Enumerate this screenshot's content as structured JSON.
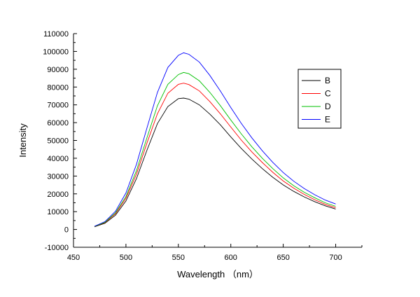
{
  "chart_data": {
    "type": "line",
    "title": "",
    "xlabel": "Wavelength （nm）",
    "ylabel": "Intensity",
    "xlim": [
      450,
      725
    ],
    "ylim": [
      -10000,
      110000
    ],
    "xticks": [
      450,
      500,
      550,
      600,
      650,
      700
    ],
    "yticks": [
      -10000,
      0,
      10000,
      20000,
      30000,
      40000,
      50000,
      60000,
      70000,
      80000,
      90000,
      100000,
      110000
    ],
    "grid": false,
    "legend_position": "right",
    "x": [
      470,
      480,
      490,
      500,
      510,
      520,
      530,
      540,
      550,
      555,
      560,
      570,
      580,
      590,
      600,
      610,
      620,
      630,
      640,
      650,
      660,
      670,
      680,
      690,
      700
    ],
    "series": [
      {
        "name": "B",
        "color": "#000000",
        "values": [
          1500,
          3500,
          8000,
          16000,
          28500,
          44500,
          59500,
          69000,
          73500,
          73800,
          73200,
          70000,
          64800,
          58800,
          52000,
          45500,
          39600,
          34200,
          29300,
          25000,
          21400,
          18300,
          15600,
          13300,
          11500
        ]
      },
      {
        "name": "C",
        "color": "#ff0000",
        "values": [
          1600,
          3800,
          8800,
          17500,
          31000,
          48500,
          65000,
          76500,
          81500,
          82200,
          81400,
          77800,
          71800,
          65000,
          57500,
          50200,
          43600,
          37600,
          32100,
          27200,
          23200,
          19700,
          16700,
          14100,
          12200
        ]
      },
      {
        "name": "D",
        "color": "#00c000",
        "values": [
          1700,
          4000,
          9300,
          18500,
          33000,
          51500,
          69500,
          81500,
          87000,
          88200,
          87500,
          83500,
          77000,
          69600,
          61500,
          53700,
          46500,
          40000,
          34200,
          29000,
          24600,
          20900,
          17800,
          15000,
          13000
        ]
      },
      {
        "name": "E",
        "color": "#0000ff",
        "values": [
          1800,
          4400,
          10200,
          20500,
          36500,
          57000,
          77000,
          91000,
          97800,
          99200,
          98400,
          94000,
          86500,
          77800,
          68500,
          59600,
          51500,
          44200,
          37700,
          32000,
          27100,
          23000,
          19500,
          16500,
          14300
        ]
      }
    ]
  }
}
